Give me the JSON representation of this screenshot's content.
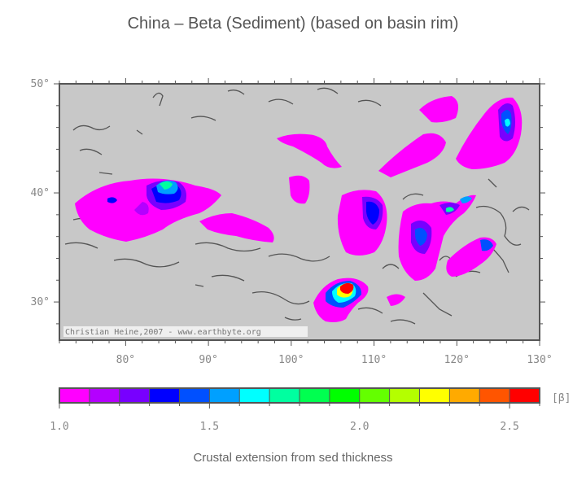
{
  "title": "China – Beta (Sediment) (based on basin rim)",
  "subtitle": "Crustal extension from sed thickness",
  "credit": "Christian Heine,2007 - www.earthbyte.org",
  "colorbar_unit": "[β]",
  "chart_data": {
    "type": "heatmap",
    "x_ticks": [
      "80°",
      "90°",
      "100°",
      "110°",
      "120°",
      "130°"
    ],
    "x_values": [
      80,
      90,
      100,
      110,
      120,
      130
    ],
    "y_ticks": [
      "50°",
      "40°",
      "30°"
    ],
    "y_values": [
      50,
      40,
      30
    ],
    "x_range": [
      72,
      130
    ],
    "y_range": [
      26.5,
      50
    ],
    "colorbar": {
      "range": [
        1.0,
        2.6
      ],
      "tick_labels": [
        "1.0",
        "1.5",
        "2.0",
        "2.5"
      ],
      "tick_values": [
        1.0,
        1.5,
        2.0,
        2.5
      ],
      "colors": [
        "#ff00ff",
        "#b400ff",
        "#7800ff",
        "#0000ff",
        "#0050ff",
        "#00a0ff",
        "#00ffff",
        "#00ffa0",
        "#00ff50",
        "#00ff00",
        "#64ff00",
        "#b4ff00",
        "#ffff00",
        "#ffaa00",
        "#ff5500",
        "#ff0000"
      ]
    },
    "colors": {
      "land": "#c8c8c8",
      "coast": "#555555",
      "frame": "#555555"
    }
  }
}
